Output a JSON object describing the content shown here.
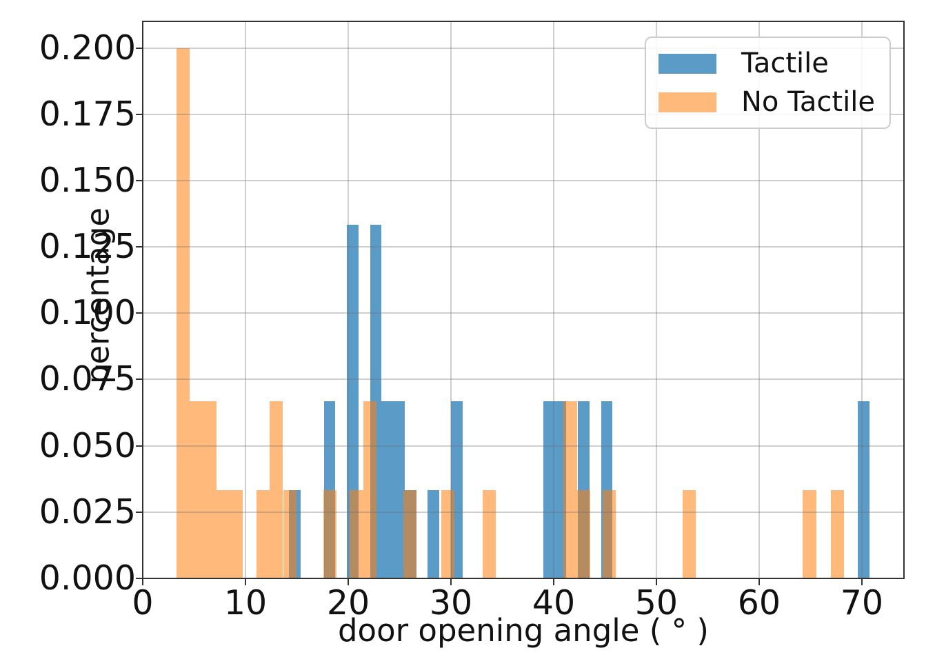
{
  "colors": {
    "tactile_fill": "#5b9bc8",
    "no_tactile_fill": "rgba(255,127,14,0.55)",
    "grid": "#cccccc",
    "spine": "#333333",
    "text": "#111111",
    "legend_border": "#cccccc"
  },
  "y_axis": {
    "label": "percentage",
    "tick_values": [
      0,
      0.025,
      0.05,
      0.075,
      0.1,
      0.125,
      0.15,
      0.175,
      0.2
    ],
    "tick_labels": [
      "0.000",
      "0.025",
      "0.050",
      "0.075",
      "0.100",
      "0.125",
      "0.150",
      "0.175",
      "0.200"
    ]
  },
  "x_axis": {
    "label": "door opening angle ( ° )",
    "tick_values": [
      0,
      10,
      20,
      30,
      40,
      50,
      60,
      70
    ],
    "tick_labels": [
      "0",
      "10",
      "20",
      "30",
      "40",
      "50",
      "60",
      "70"
    ]
  },
  "legend": {
    "items": [
      {
        "label": "Tactile",
        "series": "tactile"
      },
      {
        "label": "No Tactile",
        "series": "no_tactile"
      }
    ]
  },
  "chart_data": {
    "type": "bar",
    "subtype": "overlapping-histogram",
    "title": "",
    "xlabel": "door opening angle ( ° )",
    "ylabel": "percentage",
    "xlim": [
      0,
      74.1
    ],
    "ylim": [
      0,
      0.21
    ],
    "grid": true,
    "legend_position": "upper right",
    "series": [
      {
        "name": "Tactile",
        "key": "tactile",
        "bars": [
          {
            "from": 14.24,
            "to": 15.37,
            "height": 0.0333
          },
          {
            "from": 17.62,
            "to": 18.74,
            "height": 0.0667
          },
          {
            "from": 19.87,
            "to": 20.99,
            "height": 0.1333
          },
          {
            "from": 22.12,
            "to": 23.25,
            "height": 0.1333
          },
          {
            "from": 23.25,
            "to": 25.49,
            "height": 0.0667
          },
          {
            "from": 25.49,
            "to": 26.62,
            "height": 0.0333
          },
          {
            "from": 27.74,
            "to": 28.87,
            "height": 0.0333
          },
          {
            "from": 29.99,
            "to": 31.12,
            "height": 0.0667
          },
          {
            "from": 38.99,
            "to": 41.24,
            "height": 0.0667
          },
          {
            "from": 42.36,
            "to": 43.49,
            "height": 0.0667
          },
          {
            "from": 44.61,
            "to": 45.74,
            "height": 0.0667
          },
          {
            "from": 69.62,
            "to": 70.75,
            "height": 0.0667
          }
        ]
      },
      {
        "name": "No Tactile",
        "key": "no_tactile",
        "bars": [
          {
            "from": 3.26,
            "to": 4.56,
            "height": 0.2
          },
          {
            "from": 4.56,
            "to": 7.16,
            "height": 0.0667
          },
          {
            "from": 7.16,
            "to": 9.76,
            "height": 0.0333
          },
          {
            "from": 11.06,
            "to": 12.36,
            "height": 0.0333
          },
          {
            "from": 12.36,
            "to": 13.66,
            "height": 0.0667
          },
          {
            "from": 13.66,
            "to": 14.96,
            "height": 0.0333
          },
          {
            "from": 17.56,
            "to": 18.86,
            "height": 0.0333
          },
          {
            "from": 20.16,
            "to": 21.46,
            "height": 0.0333
          },
          {
            "from": 21.46,
            "to": 22.76,
            "height": 0.0667
          },
          {
            "from": 25.36,
            "to": 26.66,
            "height": 0.0333
          },
          {
            "from": 29.06,
            "to": 30.36,
            "height": 0.0333
          },
          {
            "from": 33.06,
            "to": 34.36,
            "height": 0.0333
          },
          {
            "from": 40.96,
            "to": 42.26,
            "height": 0.0667
          },
          {
            "from": 42.26,
            "to": 43.56,
            "height": 0.0333
          },
          {
            "from": 44.76,
            "to": 46.06,
            "height": 0.0333
          },
          {
            "from": 52.56,
            "to": 53.86,
            "height": 0.0333
          },
          {
            "from": 64.26,
            "to": 65.56,
            "height": 0.0333
          },
          {
            "from": 66.96,
            "to": 68.26,
            "height": 0.0333
          }
        ]
      }
    ]
  }
}
